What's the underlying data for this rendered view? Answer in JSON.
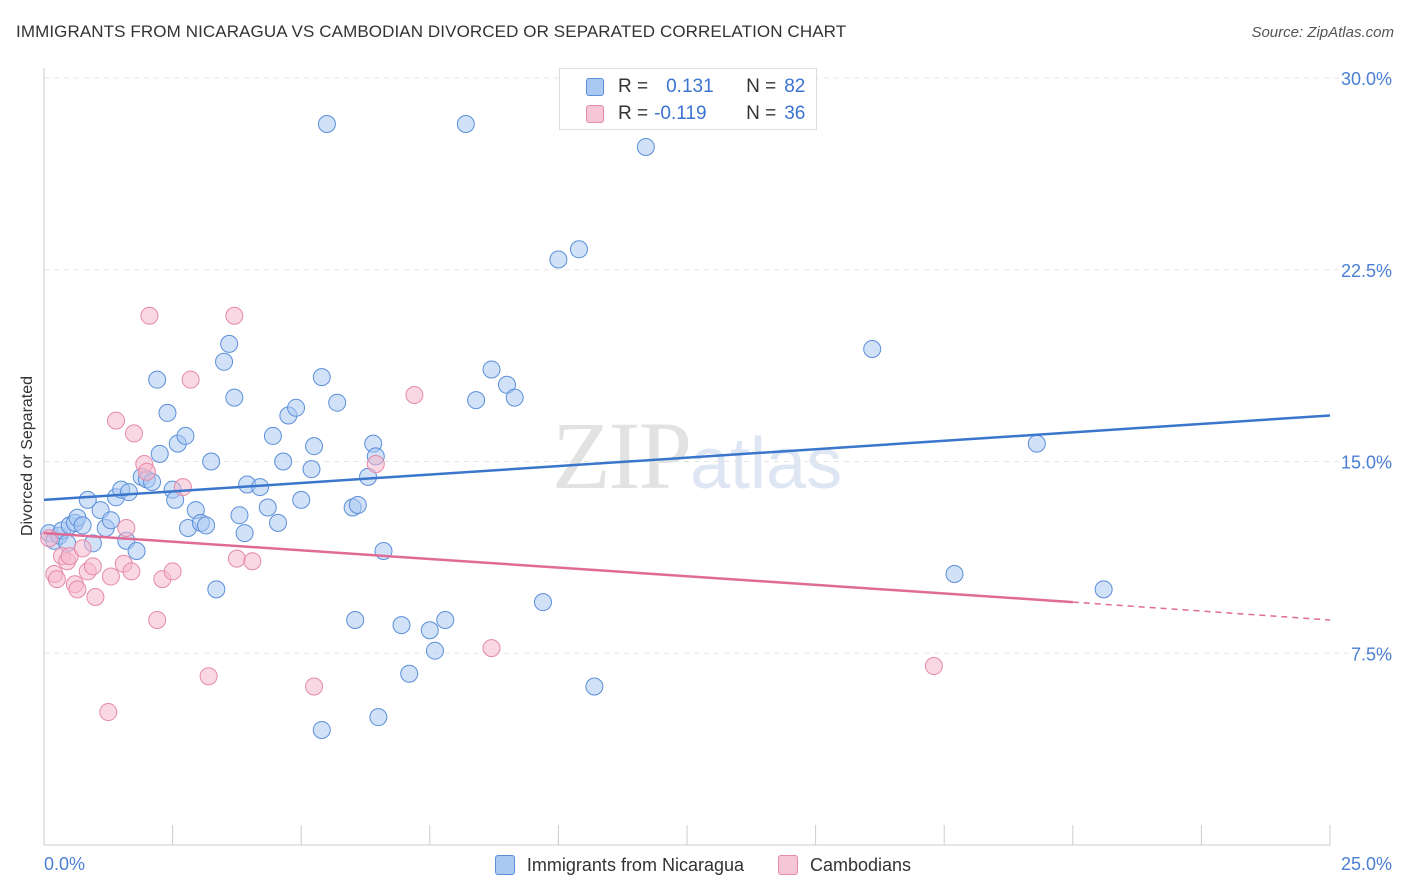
{
  "header": {
    "title": "IMMIGRANTS FROM NICARAGUA VS CAMBODIAN DIVORCED OR SEPARATED CORRELATION CHART",
    "source": "Source: ZipAtlas.com"
  },
  "watermark": {
    "zip": "ZIP",
    "atlas": "atlas"
  },
  "legend": {
    "rows": [
      {
        "r_label": "R =",
        "r_value": "0.131",
        "n_label": "N =",
        "n_value": "82"
      },
      {
        "r_label": "R =",
        "r_value": "-0.119",
        "n_label": "N =",
        "n_value": "36"
      }
    ],
    "bottom": [
      "Immigrants from Nicaragua",
      "Cambodians"
    ]
  },
  "colors": {
    "blue_fill": "#a9c8f2",
    "blue_stroke": "#5b8fd9",
    "blue_line": "#3a76cc",
    "pink_fill": "#f6b8cc",
    "pink_stroke": "#e58aa8",
    "pink_line": "#e06b95",
    "axis_text": "#4a7fd4",
    "grid": "#e6e6e6"
  },
  "chart_data": {
    "type": "scatter",
    "title": "IMMIGRANTS FROM NICARAGUA VS CAMBODIAN DIVORCED OR SEPARATED CORRELATION CHART",
    "xlabel": "",
    "ylabel": "Divorced or Separated",
    "xlim": [
      0,
      25
    ],
    "ylim": [
      0,
      30
    ],
    "x_tick_labels": [
      "0.0%",
      "25.0%"
    ],
    "y_ticks": [
      7.5,
      15.0,
      22.5,
      30.0
    ],
    "y_tick_labels": [
      "7.5%",
      "15.0%",
      "22.5%",
      "30.0%"
    ],
    "grid": true,
    "legend_position": "top-center",
    "series": [
      {
        "name": "Immigrants from Nicaragua",
        "color": "#a9c8f2",
        "R": 0.131,
        "N": 82,
        "trend": {
          "x": [
            0,
            25
          ],
          "y": [
            13.5,
            16.8
          ]
        },
        "points": [
          [
            0.1,
            12.2
          ],
          [
            0.2,
            11.9
          ],
          [
            0.3,
            12.1
          ],
          [
            0.35,
            12.3
          ],
          [
            0.45,
            11.8
          ],
          [
            0.5,
            12.5
          ],
          [
            0.6,
            12.6
          ],
          [
            0.65,
            12.8
          ],
          [
            0.75,
            12.5
          ],
          [
            0.85,
            13.5
          ],
          [
            0.95,
            11.8
          ],
          [
            1.1,
            13.1
          ],
          [
            1.2,
            12.4
          ],
          [
            1.3,
            12.7
          ],
          [
            1.4,
            13.6
          ],
          [
            1.5,
            13.9
          ],
          [
            1.6,
            11.9
          ],
          [
            1.65,
            13.8
          ],
          [
            1.8,
            11.5
          ],
          [
            1.9,
            14.4
          ],
          [
            2.0,
            14.3
          ],
          [
            2.1,
            14.2
          ],
          [
            2.2,
            18.2
          ],
          [
            2.25,
            15.3
          ],
          [
            2.4,
            16.9
          ],
          [
            2.5,
            13.9
          ],
          [
            2.55,
            13.5
          ],
          [
            2.6,
            15.7
          ],
          [
            2.75,
            16.0
          ],
          [
            2.8,
            12.4
          ],
          [
            2.95,
            13.1
          ],
          [
            3.05,
            12.6
          ],
          [
            3.15,
            12.5
          ],
          [
            3.25,
            15.0
          ],
          [
            3.35,
            10.0
          ],
          [
            3.5,
            18.9
          ],
          [
            3.6,
            19.6
          ],
          [
            3.7,
            17.5
          ],
          [
            3.8,
            12.9
          ],
          [
            3.9,
            12.2
          ],
          [
            3.95,
            14.1
          ],
          [
            4.2,
            14.0
          ],
          [
            4.35,
            13.2
          ],
          [
            4.45,
            16.0
          ],
          [
            4.55,
            12.6
          ],
          [
            4.65,
            15.0
          ],
          [
            4.75,
            16.8
          ],
          [
            4.9,
            17.1
          ],
          [
            5.0,
            13.5
          ],
          [
            5.2,
            14.7
          ],
          [
            5.25,
            15.6
          ],
          [
            5.4,
            18.3
          ],
          [
            5.5,
            28.2
          ],
          [
            5.7,
            17.3
          ],
          [
            6.0,
            13.2
          ],
          [
            6.05,
            8.8
          ],
          [
            6.1,
            13.3
          ],
          [
            6.3,
            14.4
          ],
          [
            6.4,
            15.7
          ],
          [
            6.45,
            15.2
          ],
          [
            6.6,
            11.5
          ],
          [
            6.95,
            8.6
          ],
          [
            7.1,
            6.7
          ],
          [
            7.5,
            8.4
          ],
          [
            7.6,
            7.6
          ],
          [
            7.8,
            8.8
          ],
          [
            8.2,
            28.2
          ],
          [
            8.4,
            17.4
          ],
          [
            8.7,
            18.6
          ],
          [
            9.0,
            18.0
          ],
          [
            9.15,
            17.5
          ],
          [
            9.7,
            9.5
          ],
          [
            10.0,
            22.9
          ],
          [
            10.4,
            23.3
          ],
          [
            10.7,
            6.2
          ],
          [
            11.7,
            27.3
          ],
          [
            6.5,
            5.0
          ],
          [
            5.4,
            4.5
          ],
          [
            16.1,
            19.4
          ],
          [
            17.7,
            10.6
          ],
          [
            19.3,
            15.7
          ],
          [
            20.6,
            10.0
          ]
        ]
      },
      {
        "name": "Cambodians",
        "color": "#f6b8cc",
        "R": -0.119,
        "N": 36,
        "trend": {
          "x": [
            0,
            20
          ],
          "y": [
            12.2,
            9.5
          ]
        },
        "trend_dashed": {
          "x": [
            20,
            25
          ],
          "y": [
            9.5,
            8.8
          ]
        },
        "points": [
          [
            0.1,
            12.0
          ],
          [
            0.2,
            10.6
          ],
          [
            0.25,
            10.4
          ],
          [
            0.35,
            11.3
          ],
          [
            0.45,
            11.1
          ],
          [
            0.5,
            11.3
          ],
          [
            0.6,
            10.2
          ],
          [
            0.65,
            10.0
          ],
          [
            0.75,
            11.6
          ],
          [
            0.85,
            10.7
          ],
          [
            0.95,
            10.9
          ],
          [
            1.0,
            9.7
          ],
          [
            1.25,
            5.2
          ],
          [
            1.3,
            10.5
          ],
          [
            1.4,
            16.6
          ],
          [
            1.55,
            11.0
          ],
          [
            1.6,
            12.4
          ],
          [
            1.7,
            10.7
          ],
          [
            1.75,
            16.1
          ],
          [
            1.95,
            14.9
          ],
          [
            2.0,
            14.6
          ],
          [
            2.05,
            20.7
          ],
          [
            2.2,
            8.8
          ],
          [
            2.3,
            10.4
          ],
          [
            2.5,
            10.7
          ],
          [
            2.7,
            14.0
          ],
          [
            2.85,
            18.2
          ],
          [
            3.2,
            6.6
          ],
          [
            3.7,
            20.7
          ],
          [
            3.75,
            11.2
          ],
          [
            4.05,
            11.1
          ],
          [
            5.25,
            6.2
          ],
          [
            6.45,
            14.9
          ],
          [
            7.2,
            17.6
          ],
          [
            8.7,
            7.7
          ],
          [
            17.3,
            7.0
          ]
        ]
      }
    ]
  }
}
